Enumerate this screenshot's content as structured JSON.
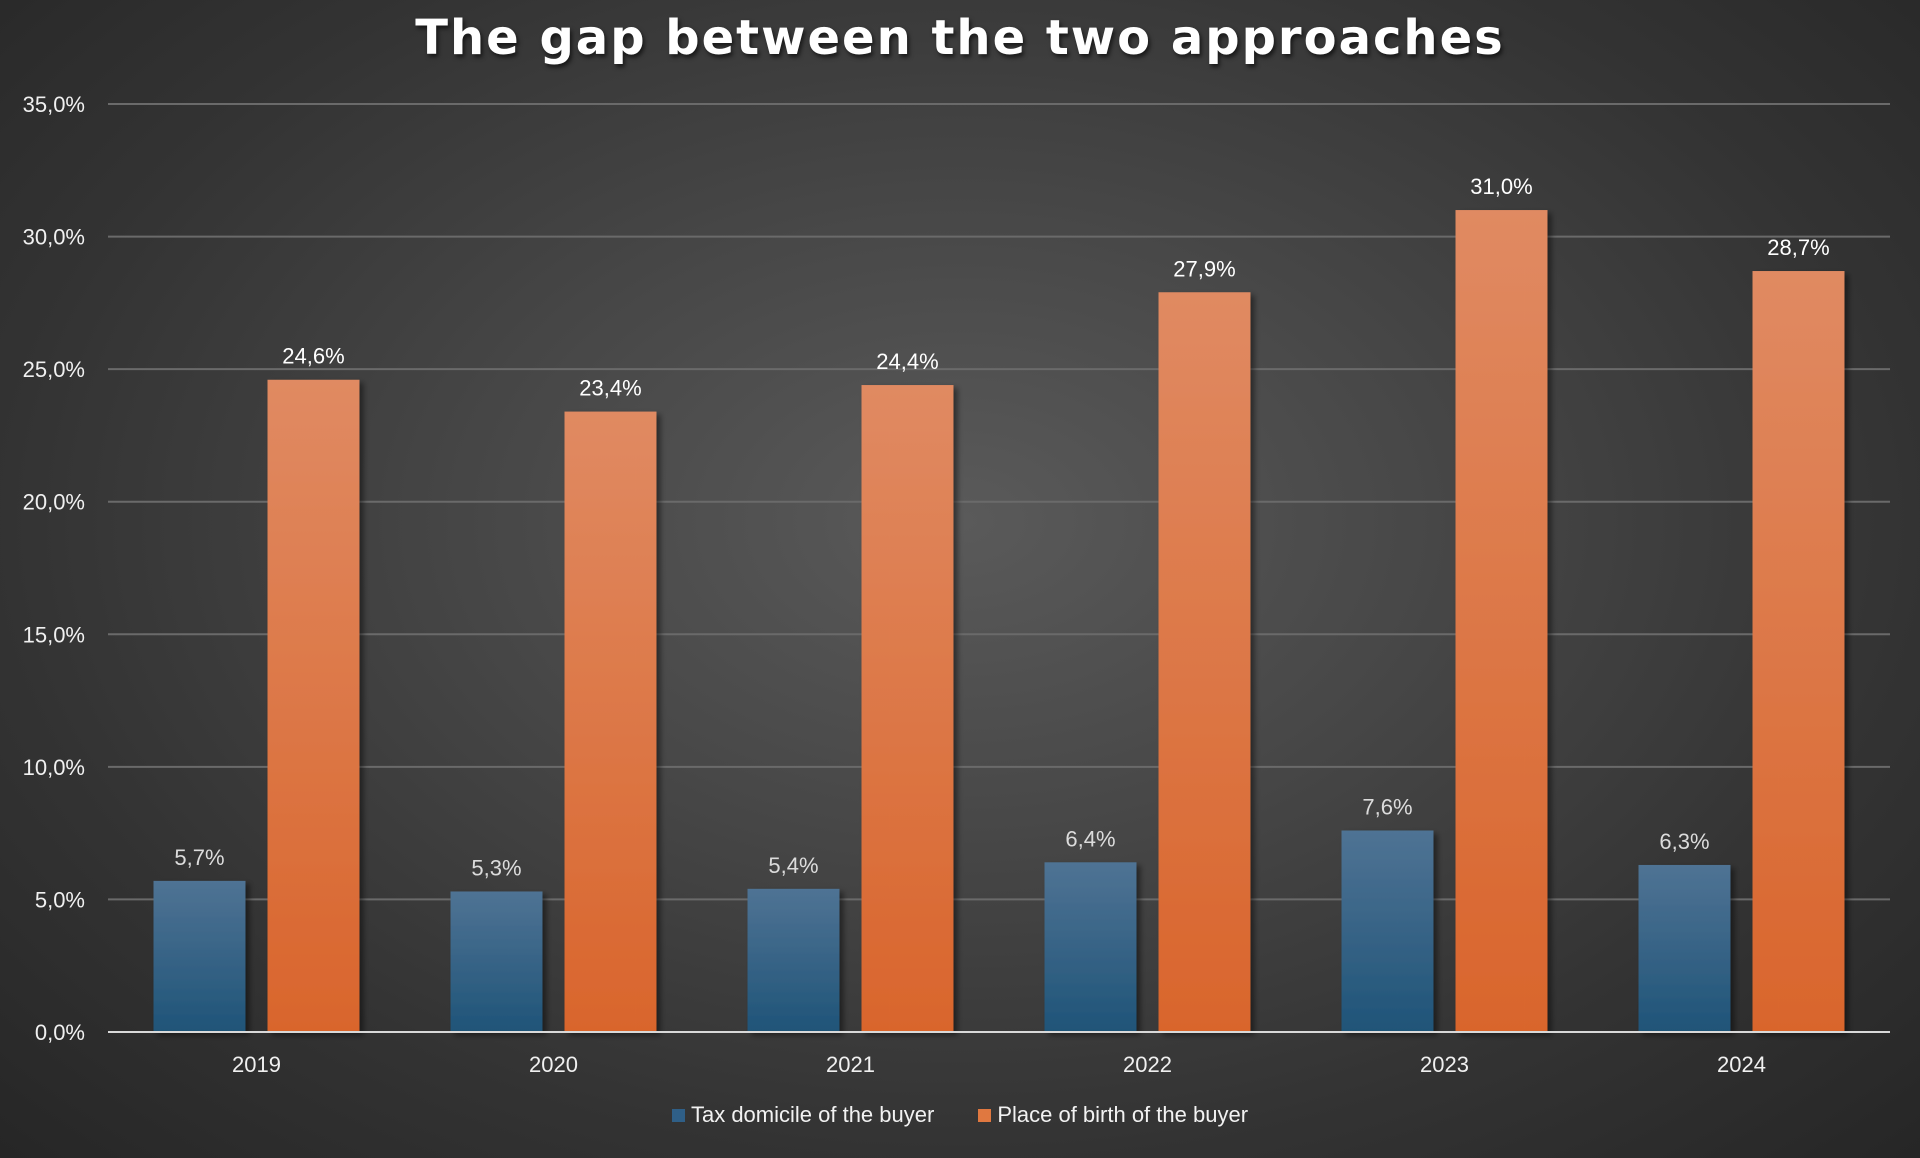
{
  "chart_data": {
    "type": "bar",
    "title": "The gap between the two approaches",
    "categories": [
      "2019",
      "2020",
      "2021",
      "2022",
      "2023",
      "2024"
    ],
    "series": [
      {
        "name": "Tax domicile of the buyer",
        "values": [
          5.7,
          5.3,
          5.4,
          6.4,
          7.6,
          6.3
        ],
        "labels": [
          "5,7%",
          "5,3%",
          "5,4%",
          "6,4%",
          "7,6%",
          "6,3%"
        ],
        "color": "#2f5f87"
      },
      {
        "name": "Place of birth of the buyer",
        "values": [
          24.6,
          23.4,
          24.4,
          27.9,
          31.0,
          28.7
        ],
        "labels": [
          "24,6%",
          "23,4%",
          "24,4%",
          "27,9%",
          "31,0%",
          "28,7%"
        ],
        "color": "#e07840"
      }
    ],
    "ylim": [
      0,
      35
    ],
    "yticks": [
      0,
      5,
      10,
      15,
      20,
      25,
      30,
      35
    ],
    "ytick_labels": [
      "0,0%",
      "5,0%",
      "10,0%",
      "15,0%",
      "20,0%",
      "25,0%",
      "30,0%",
      "35,0%"
    ],
    "xlabel": "",
    "ylabel": "",
    "grid": true,
    "legend_position": "bottom"
  }
}
